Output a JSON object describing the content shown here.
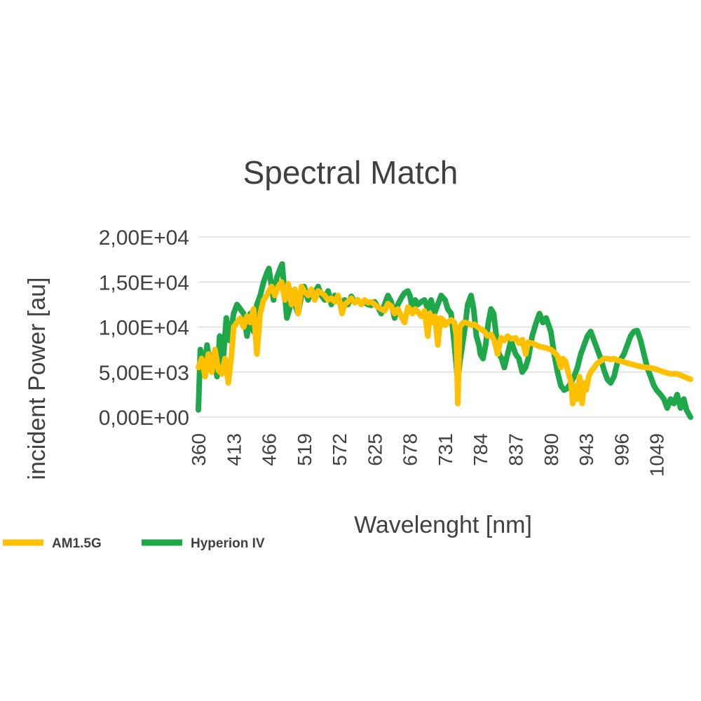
{
  "chart_data": {
    "type": "line",
    "title": "Spectral Match",
    "xlabel": "Wavelenght [nm]",
    "ylabel": "incident Power  [au]",
    "x_tick_labels": [
      "360",
      "413",
      "466",
      "519",
      "572",
      "625",
      "678",
      "731",
      "784",
      "837",
      "890",
      "943",
      "996",
      "1049"
    ],
    "y_tick_labels": [
      "0,00E+00",
      "5,00E+03",
      "1,00E+04",
      "1,50E+04",
      "2,00E+04"
    ],
    "y_ticks": [
      0,
      5000,
      10000,
      15000,
      20000
    ],
    "xlim": [
      360,
      1100
    ],
    "ylim": [
      0,
      20000
    ],
    "grid": "horizontal",
    "legend_position": "bottom-left",
    "series": [
      {
        "name": "AM1.5G",
        "color": "#FFC000",
        "points": [
          [
            360,
            5500
          ],
          [
            365,
            6500
          ],
          [
            370,
            4500
          ],
          [
            375,
            7000
          ],
          [
            380,
            5000
          ],
          [
            385,
            7500
          ],
          [
            390,
            5200
          ],
          [
            395,
            4800
          ],
          [
            400,
            6500
          ],
          [
            405,
            3800
          ],
          [
            410,
            7000
          ],
          [
            413,
            10000
          ],
          [
            418,
            10500
          ],
          [
            423,
            11000
          ],
          [
            428,
            10000
          ],
          [
            433,
            11200
          ],
          [
            438,
            10500
          ],
          [
            443,
            12000
          ],
          [
            448,
            7000
          ],
          [
            453,
            11500
          ],
          [
            458,
            13000
          ],
          [
            463,
            13500
          ],
          [
            466,
            14000
          ],
          [
            470,
            14500
          ],
          [
            475,
            13500
          ],
          [
            480,
            14500
          ],
          [
            485,
            15000
          ],
          [
            490,
            13000
          ],
          [
            495,
            14800
          ],
          [
            500,
            12500
          ],
          [
            505,
            14200
          ],
          [
            510,
            11500
          ],
          [
            515,
            14500
          ],
          [
            519,
            14000
          ],
          [
            525,
            13500
          ],
          [
            530,
            14200
          ],
          [
            535,
            13000
          ],
          [
            540,
            14000
          ],
          [
            545,
            13800
          ],
          [
            550,
            13500
          ],
          [
            555,
            13000
          ],
          [
            560,
            13200
          ],
          [
            565,
            12800
          ],
          [
            570,
            13500
          ],
          [
            572,
            13000
          ],
          [
            576,
            11500
          ],
          [
            580,
            12500
          ],
          [
            585,
            12800
          ],
          [
            590,
            13200
          ],
          [
            595,
            12700
          ],
          [
            600,
            13000
          ],
          [
            605,
            12500
          ],
          [
            610,
            13000
          ],
          [
            615,
            12700
          ],
          [
            620,
            12800
          ],
          [
            625,
            12500
          ],
          [
            630,
            12200
          ],
          [
            635,
            12000
          ],
          [
            640,
            11800
          ],
          [
            645,
            12600
          ],
          [
            650,
            12300
          ],
          [
            655,
            11500
          ],
          [
            660,
            12000
          ],
          [
            665,
            11200
          ],
          [
            670,
            10500
          ],
          [
            675,
            12200
          ],
          [
            678,
            12000
          ],
          [
            682,
            11500
          ],
          [
            686,
            12000
          ],
          [
            690,
            11700
          ],
          [
            695,
            11200
          ],
          [
            700,
            11800
          ],
          [
            705,
            9000
          ],
          [
            708,
            11500
          ],
          [
            712,
            10500
          ],
          [
            716,
            11200
          ],
          [
            720,
            8000
          ],
          [
            724,
            11000
          ],
          [
            728,
            10800
          ],
          [
            731,
            10200
          ],
          [
            735,
            10500
          ],
          [
            740,
            10800
          ],
          [
            745,
            10500
          ],
          [
            748,
            9000
          ],
          [
            750,
            1500
          ],
          [
            753,
            10000
          ],
          [
            758,
            10500
          ],
          [
            762,
            10500
          ],
          [
            766,
            10400
          ],
          [
            770,
            10200
          ],
          [
            775,
            10300
          ],
          [
            780,
            10000
          ],
          [
            784,
            9800
          ],
          [
            790,
            9500
          ],
          [
            795,
            9000
          ],
          [
            800,
            9200
          ],
          [
            805,
            8500
          ],
          [
            810,
            7000
          ],
          [
            815,
            8800
          ],
          [
            820,
            8500
          ],
          [
            825,
            9000
          ],
          [
            830,
            8700
          ],
          [
            837,
            8800
          ],
          [
            842,
            8200
          ],
          [
            847,
            8600
          ],
          [
            852,
            7000
          ],
          [
            856,
            8300
          ],
          [
            862,
            8200
          ],
          [
            868,
            8000
          ],
          [
            875,
            7800
          ],
          [
            882,
            7700
          ],
          [
            890,
            7500
          ],
          [
            895,
            7200
          ],
          [
            900,
            6800
          ],
          [
            905,
            5500
          ],
          [
            908,
            6500
          ],
          [
            912,
            6200
          ],
          [
            916,
            5000
          ],
          [
            920,
            4000
          ],
          [
            923,
            1500
          ],
          [
            926,
            3500
          ],
          [
            930,
            2000
          ],
          [
            933,
            4500
          ],
          [
            937,
            1500
          ],
          [
            940,
            3800
          ],
          [
            943,
            3000
          ],
          [
            947,
            4500
          ],
          [
            950,
            5000
          ],
          [
            955,
            5500
          ],
          [
            960,
            6000
          ],
          [
            965,
            6200
          ],
          [
            970,
            6500
          ],
          [
            975,
            6500
          ],
          [
            980,
            6400
          ],
          [
            985,
            6500
          ],
          [
            990,
            6300
          ],
          [
            996,
            6200
          ],
          [
            1005,
            6000
          ],
          [
            1015,
            5800
          ],
          [
            1025,
            5600
          ],
          [
            1035,
            5500
          ],
          [
            1045,
            5400
          ],
          [
            1049,
            5300
          ],
          [
            1060,
            5000
          ],
          [
            1070,
            4800
          ],
          [
            1080,
            4800
          ],
          [
            1090,
            4500
          ],
          [
            1100,
            4200
          ]
        ]
      },
      {
        "name": "Hyperion IV",
        "color": "#1EA84A",
        "points": [
          [
            360,
            800
          ],
          [
            363,
            7500
          ],
          [
            368,
            5000
          ],
          [
            373,
            8000
          ],
          [
            378,
            5500
          ],
          [
            383,
            7000
          ],
          [
            388,
            4500
          ],
          [
            392,
            9000
          ],
          [
            397,
            6000
          ],
          [
            402,
            11000
          ],
          [
            407,
            8500
          ],
          [
            413,
            11500
          ],
          [
            418,
            12500
          ],
          [
            423,
            12000
          ],
          [
            428,
            11500
          ],
          [
            433,
            9000
          ],
          [
            438,
            11500
          ],
          [
            443,
            9500
          ],
          [
            448,
            12500
          ],
          [
            453,
            13500
          ],
          [
            458,
            15000
          ],
          [
            463,
            16000
          ],
          [
            466,
            16500
          ],
          [
            470,
            14500
          ],
          [
            473,
            13000
          ],
          [
            478,
            15500
          ],
          [
            483,
            16500
          ],
          [
            486,
            17000
          ],
          [
            490,
            13500
          ],
          [
            493,
            11000
          ],
          [
            497,
            12000
          ],
          [
            501,
            14000
          ],
          [
            505,
            12500
          ],
          [
            510,
            11500
          ],
          [
            515,
            13500
          ],
          [
            519,
            14500
          ],
          [
            525,
            13000
          ],
          [
            530,
            14000
          ],
          [
            535,
            13800
          ],
          [
            540,
            14500
          ],
          [
            545,
            13500
          ],
          [
            550,
            13000
          ],
          [
            555,
            14000
          ],
          [
            560,
            12500
          ],
          [
            565,
            13500
          ],
          [
            570,
            13200
          ],
          [
            575,
            12800
          ],
          [
            580,
            13000
          ],
          [
            585,
            12500
          ],
          [
            590,
            13400
          ],
          [
            595,
            12800
          ],
          [
            600,
            13000
          ],
          [
            605,
            12600
          ],
          [
            610,
            12700
          ],
          [
            615,
            12500
          ],
          [
            620,
            12400
          ],
          [
            625,
            12800
          ],
          [
            630,
            12200
          ],
          [
            635,
            11500
          ],
          [
            640,
            12500
          ],
          [
            645,
            13500
          ],
          [
            650,
            12800
          ],
          [
            655,
            11000
          ],
          [
            660,
            12500
          ],
          [
            665,
            13200
          ],
          [
            670,
            13800
          ],
          [
            675,
            14000
          ],
          [
            678,
            13500
          ],
          [
            682,
            12000
          ],
          [
            686,
            13000
          ],
          [
            690,
            12500
          ],
          [
            695,
            12800
          ],
          [
            700,
            13000
          ],
          [
            705,
            12000
          ],
          [
            710,
            13000
          ],
          [
            715,
            11500
          ],
          [
            720,
            12500
          ],
          [
            725,
            13500
          ],
          [
            731,
            13000
          ],
          [
            735,
            12000
          ],
          [
            740,
            11500
          ],
          [
            745,
            8000
          ],
          [
            750,
            4000
          ],
          [
            753,
            6000
          ],
          [
            757,
            8000
          ],
          [
            761,
            10000
          ],
          [
            765,
            12500
          ],
          [
            770,
            13500
          ],
          [
            774,
            12000
          ],
          [
            778,
            9000
          ],
          [
            782,
            8000
          ],
          [
            784,
            7000
          ],
          [
            788,
            6500
          ],
          [
            792,
            8000
          ],
          [
            796,
            10500
          ],
          [
            800,
            12000
          ],
          [
            804,
            11500
          ],
          [
            808,
            9000
          ],
          [
            812,
            7000
          ],
          [
            816,
            6500
          ],
          [
            820,
            5500
          ],
          [
            825,
            7000
          ],
          [
            830,
            8500
          ],
          [
            837,
            7000
          ],
          [
            842,
            6500
          ],
          [
            847,
            5000
          ],
          [
            852,
            5500
          ],
          [
            856,
            6500
          ],
          [
            862,
            9000
          ],
          [
            868,
            10500
          ],
          [
            873,
            11500
          ],
          [
            878,
            10500
          ],
          [
            883,
            11000
          ],
          [
            890,
            9500
          ],
          [
            895,
            7000
          ],
          [
            900,
            5000
          ],
          [
            905,
            3500
          ],
          [
            910,
            3000
          ],
          [
            915,
            3200
          ],
          [
            920,
            3800
          ],
          [
            925,
            4500
          ],
          [
            930,
            5500
          ],
          [
            935,
            7000
          ],
          [
            940,
            8000
          ],
          [
            945,
            9000
          ],
          [
            950,
            9500
          ],
          [
            955,
            8500
          ],
          [
            960,
            7500
          ],
          [
            965,
            6500
          ],
          [
            970,
            5200
          ],
          [
            975,
            4200
          ],
          [
            980,
            3800
          ],
          [
            985,
            4500
          ],
          [
            990,
            6000
          ],
          [
            996,
            6500
          ],
          [
            1000,
            7000
          ],
          [
            1005,
            8000
          ],
          [
            1010,
            9000
          ],
          [
            1015,
            9500
          ],
          [
            1020,
            9600
          ],
          [
            1025,
            8500
          ],
          [
            1030,
            7000
          ],
          [
            1035,
            5500
          ],
          [
            1040,
            4500
          ],
          [
            1045,
            3500
          ],
          [
            1049,
            3000
          ],
          [
            1055,
            2500
          ],
          [
            1060,
            2000
          ],
          [
            1065,
            1000
          ],
          [
            1070,
            2000
          ],
          [
            1075,
            1500
          ],
          [
            1080,
            2500
          ],
          [
            1085,
            1000
          ],
          [
            1090,
            2000
          ],
          [
            1094,
            800
          ],
          [
            1100,
            0
          ]
        ]
      }
    ]
  }
}
